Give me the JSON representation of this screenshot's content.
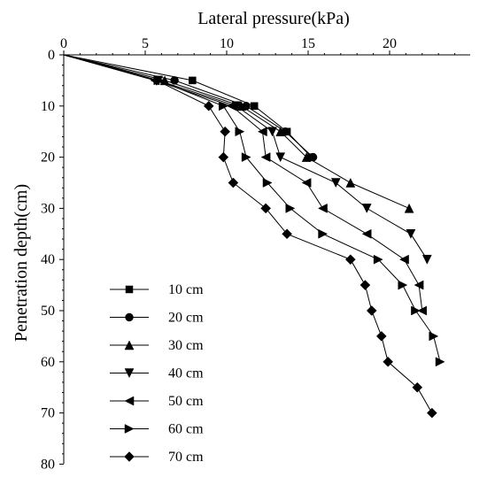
{
  "chart_data": {
    "type": "line",
    "xlabel": "Lateral pressure(kPa)",
    "ylabel": "Penetration depth(cm)",
    "x_axis_position": "top",
    "y_axis_inverted": true,
    "xlim": [
      0,
      25
    ],
    "ylim": [
      0,
      80
    ],
    "x_ticks": [
      0,
      5,
      10,
      15,
      20
    ],
    "y_ticks": [
      0,
      10,
      20,
      30,
      40,
      50,
      60,
      70,
      80
    ],
    "grid": false,
    "legend_position": "bottom-left",
    "series": [
      {
        "name": "10 cm",
        "marker": "square",
        "points": [
          [
            0,
            0
          ],
          [
            7.9,
            5
          ],
          [
            11.7,
            10
          ],
          [
            13.7,
            15
          ],
          [
            15.2,
            20
          ]
        ]
      },
      {
        "name": "20 cm",
        "marker": "circle",
        "points": [
          [
            0,
            0
          ],
          [
            6.8,
            5
          ],
          [
            11.2,
            10
          ],
          [
            13.6,
            15
          ],
          [
            15.3,
            20
          ]
        ]
      },
      {
        "name": "30 cm",
        "marker": "triangle-up",
        "points": [
          [
            0,
            0
          ],
          [
            6.2,
            5
          ],
          [
            10.9,
            10
          ],
          [
            13.3,
            15
          ],
          [
            14.9,
            20
          ],
          [
            17.6,
            25
          ],
          [
            21.2,
            30
          ]
        ]
      },
      {
        "name": "40 cm",
        "marker": "triangle-down",
        "points": [
          [
            0,
            0
          ],
          [
            5.8,
            5
          ],
          [
            10.6,
            10
          ],
          [
            12.8,
            15
          ],
          [
            13.3,
            20
          ],
          [
            16.7,
            25
          ],
          [
            18.6,
            30
          ],
          [
            21.3,
            35
          ],
          [
            22.3,
            40
          ]
        ]
      },
      {
        "name": "50 cm",
        "marker": "triangle-left",
        "points": [
          [
            0,
            0
          ],
          [
            5.6,
            5
          ],
          [
            10.3,
            10
          ],
          [
            12.2,
            15
          ],
          [
            12.4,
            20
          ],
          [
            14.9,
            25
          ],
          [
            15.9,
            30
          ],
          [
            18.6,
            35
          ],
          [
            20.9,
            40
          ],
          [
            21.8,
            45
          ],
          [
            22.0,
            50
          ]
        ]
      },
      {
        "name": "60 cm",
        "marker": "triangle-right",
        "points": [
          [
            0,
            0
          ],
          [
            5.8,
            5
          ],
          [
            9.8,
            10
          ],
          [
            10.8,
            15
          ],
          [
            11.2,
            20
          ],
          [
            12.5,
            25
          ],
          [
            13.9,
            30
          ],
          [
            15.9,
            35
          ],
          [
            19.3,
            40
          ],
          [
            20.8,
            45
          ],
          [
            21.6,
            50
          ],
          [
            22.7,
            55
          ],
          [
            23.1,
            60
          ]
        ]
      },
      {
        "name": "70 cm",
        "marker": "diamond",
        "points": [
          [
            0,
            0
          ],
          [
            5.7,
            5
          ],
          [
            8.9,
            10
          ],
          [
            9.9,
            15
          ],
          [
            9.8,
            20
          ],
          [
            10.4,
            25
          ],
          [
            12.4,
            30
          ],
          [
            13.7,
            35
          ],
          [
            17.6,
            40
          ],
          [
            18.5,
            45
          ],
          [
            18.9,
            50
          ],
          [
            19.5,
            55
          ],
          [
            19.9,
            60
          ],
          [
            21.7,
            65
          ],
          [
            22.6,
            70
          ]
        ]
      }
    ]
  }
}
